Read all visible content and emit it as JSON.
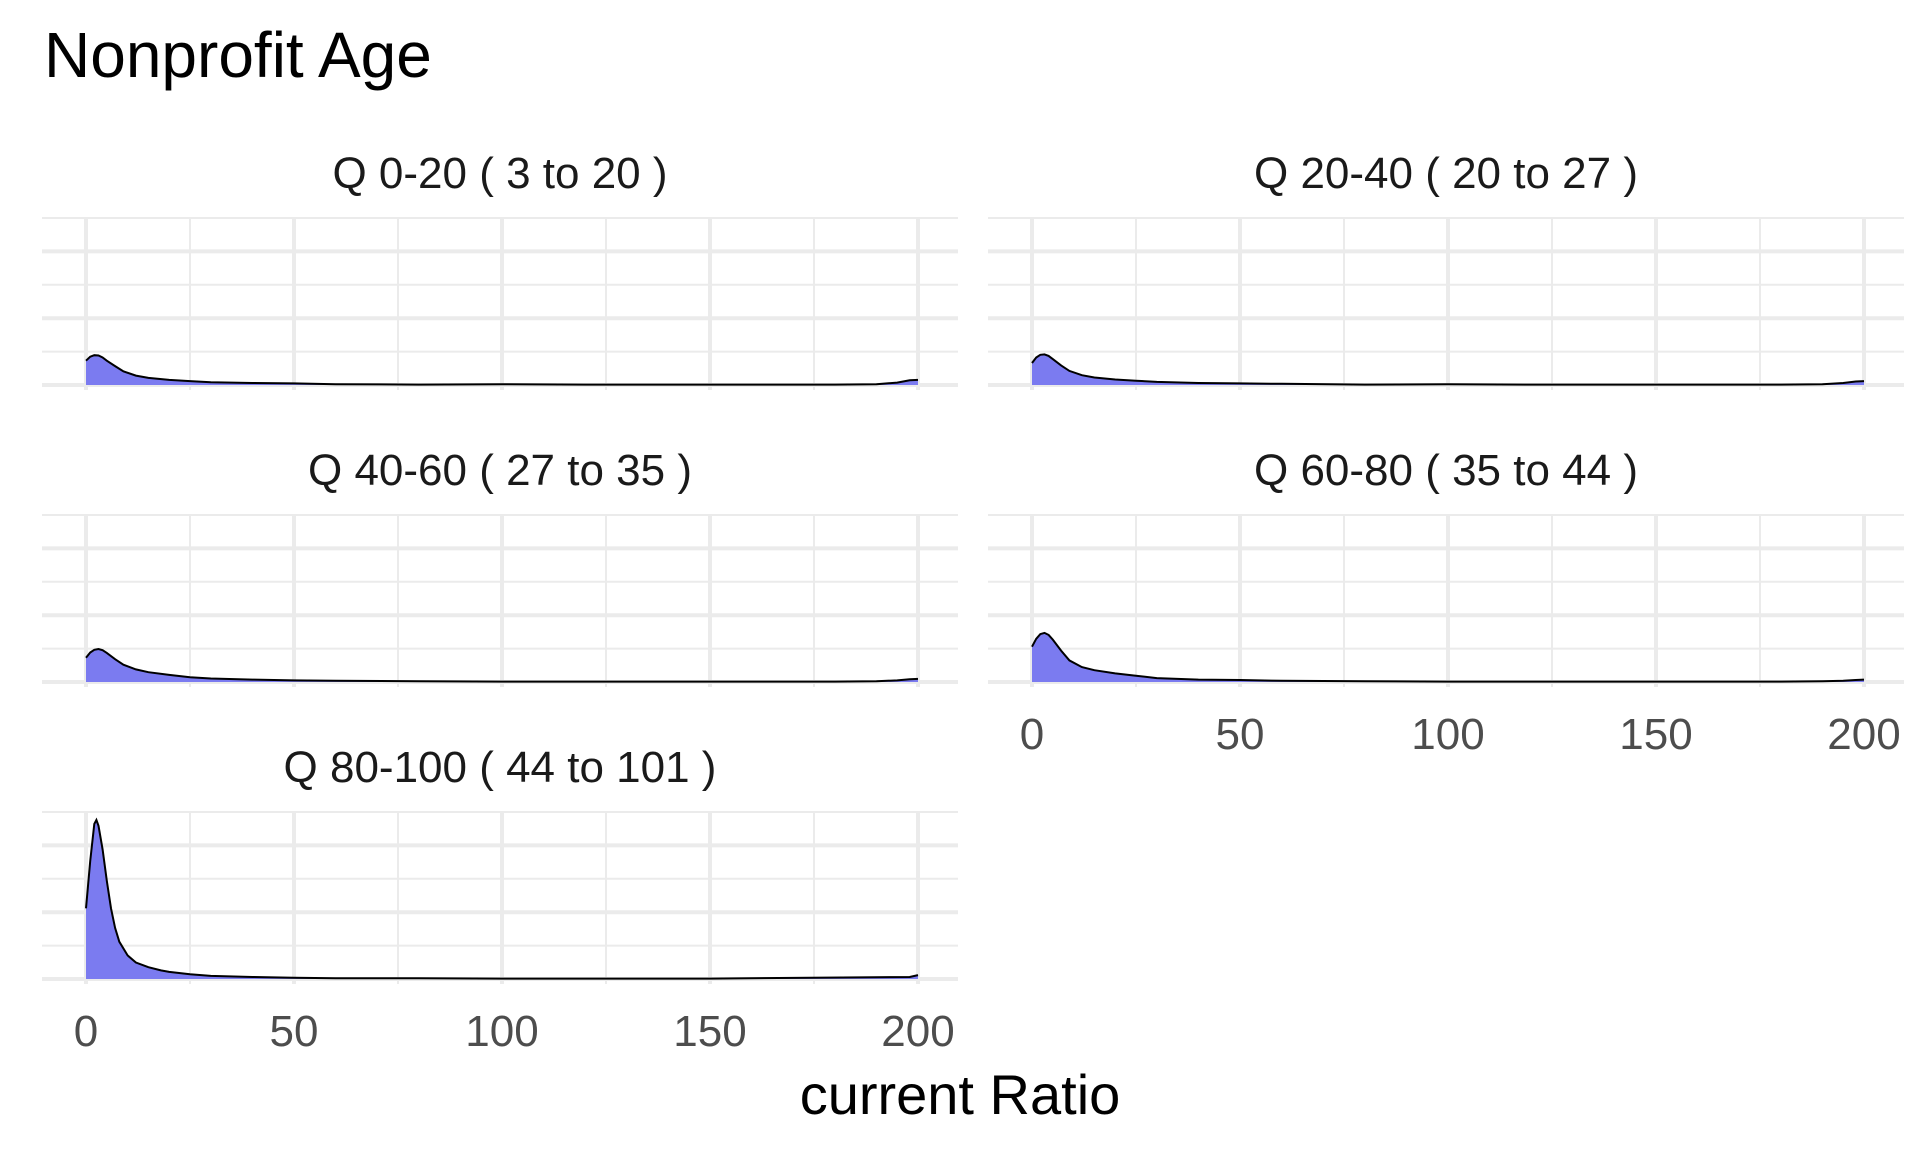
{
  "chart_data": {
    "type": "area",
    "title": "Nonprofit Age",
    "xlabel": "current Ratio",
    "ylabel": "",
    "xlim": [
      0,
      200
    ],
    "x_ticks": [
      0,
      50,
      100,
      150,
      200
    ],
    "x_tick_labels": [
      "0",
      "50",
      "100",
      "150",
      "200"
    ],
    "grid": true,
    "fill_color": "#7b7bf0",
    "line_color": "#000000",
    "grid_color": "#ebebeb",
    "facets": [
      {
        "label": "Q 0-20   ( 3 to 20 )",
        "x": [
          0,
          1,
          2,
          3,
          4,
          5,
          7,
          9,
          12,
          15,
          20,
          25,
          30,
          40,
          50,
          60,
          80,
          100,
          120,
          150,
          180,
          190,
          195,
          198,
          200
        ],
        "y": [
          0.62,
          0.72,
          0.76,
          0.75,
          0.7,
          0.62,
          0.48,
          0.35,
          0.24,
          0.18,
          0.13,
          0.1,
          0.07,
          0.05,
          0.04,
          0.02,
          0.01,
          0.02,
          0.01,
          0.01,
          0.01,
          0.02,
          0.06,
          0.12,
          0.13
        ]
      },
      {
        "label": "Q 20-40   ( 20 to 27 )",
        "x": [
          0,
          1,
          2,
          3,
          4,
          5,
          7,
          9,
          12,
          15,
          20,
          25,
          30,
          40,
          50,
          60,
          80,
          100,
          120,
          150,
          180,
          190,
          195,
          198,
          200
        ],
        "y": [
          0.56,
          0.7,
          0.77,
          0.78,
          0.74,
          0.66,
          0.5,
          0.36,
          0.25,
          0.19,
          0.14,
          0.11,
          0.08,
          0.05,
          0.04,
          0.03,
          0.01,
          0.02,
          0.01,
          0.01,
          0.01,
          0.02,
          0.05,
          0.09,
          0.1
        ]
      },
      {
        "label": "Q 40-60   ( 27 to 35 )",
        "x": [
          0,
          1,
          2,
          3,
          4,
          5,
          7,
          9,
          12,
          15,
          20,
          25,
          30,
          40,
          50,
          60,
          80,
          100,
          120,
          150,
          180,
          190,
          195,
          198,
          200
        ],
        "y": [
          0.62,
          0.75,
          0.82,
          0.84,
          0.81,
          0.74,
          0.58,
          0.44,
          0.32,
          0.25,
          0.18,
          0.12,
          0.09,
          0.06,
          0.04,
          0.03,
          0.02,
          0.01,
          0.01,
          0.01,
          0.01,
          0.02,
          0.04,
          0.07,
          0.08
        ]
      },
      {
        "label": "Q 60-80   ( 35 to 44 )",
        "x": [
          0,
          1,
          2,
          3,
          4,
          5,
          7,
          9,
          12,
          15,
          20,
          25,
          30,
          40,
          50,
          60,
          80,
          100,
          120,
          150,
          180,
          190,
          195,
          198,
          200
        ],
        "y": [
          0.9,
          1.1,
          1.22,
          1.25,
          1.2,
          1.08,
          0.8,
          0.55,
          0.38,
          0.3,
          0.22,
          0.16,
          0.1,
          0.06,
          0.05,
          0.03,
          0.02,
          0.01,
          0.01,
          0.01,
          0.01,
          0.02,
          0.03,
          0.05,
          0.06
        ]
      },
      {
        "label": "Q 80-100   ( 44 to 101 )",
        "x": [
          0,
          1,
          2,
          2.5,
          3,
          4,
          5,
          6,
          7,
          8,
          10,
          12,
          15,
          18,
          20,
          25,
          30,
          40,
          50,
          60,
          80,
          100,
          150,
          198,
          200
        ],
        "y": [
          1.8,
          3.0,
          3.95,
          4.05,
          3.9,
          3.3,
          2.5,
          1.8,
          1.3,
          0.95,
          0.6,
          0.42,
          0.3,
          0.22,
          0.18,
          0.12,
          0.08,
          0.05,
          0.03,
          0.02,
          0.02,
          0.01,
          0.01,
          0.05,
          0.1
        ]
      }
    ]
  }
}
